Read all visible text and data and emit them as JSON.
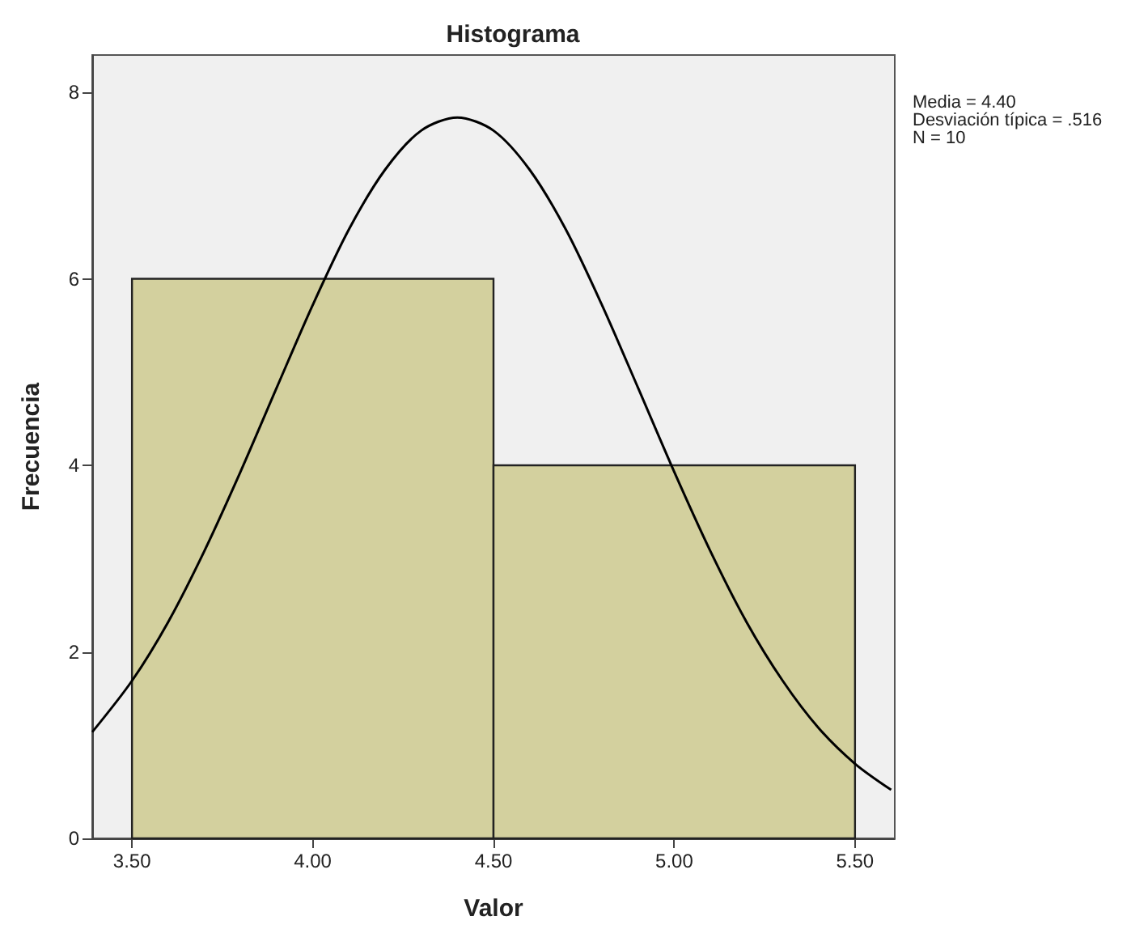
{
  "chart_data": {
    "type": "histogram",
    "title": "Histograma",
    "xlabel": "Valor",
    "ylabel": "Frecuencia",
    "bins": [
      3.5,
      4.5,
      5.5
    ],
    "values": [
      6,
      4
    ],
    "color": "#d3d09e",
    "series": [
      {
        "type": "line",
        "color": "#000000",
        "x": [
          3.39,
          3.5,
          3.6,
          3.7,
          3.8,
          3.9,
          4.0,
          4.1,
          4.2,
          4.3,
          4.4,
          4.5,
          4.6,
          4.7,
          4.8,
          4.9,
          5.0,
          5.1,
          5.2,
          5.3,
          5.4,
          5.5,
          5.6
        ],
        "values": [
          1.14,
          1.69,
          2.32,
          3.08,
          3.93,
          4.83,
          5.72,
          6.53,
          7.17,
          7.59,
          7.73,
          7.59,
          7.17,
          6.53,
          5.72,
          4.83,
          3.93,
          3.08,
          2.32,
          1.69,
          1.18,
          0.8,
          0.52
        ]
      }
    ],
    "xlim": [
      3.39,
      5.61
    ],
    "xticks": [
      {
        "value": 3.5,
        "label": "3.50"
      },
      {
        "value": 4.0,
        "label": "4.00"
      },
      {
        "value": 4.5,
        "label": "4.50"
      },
      {
        "value": 5.0,
        "label": "5.00"
      },
      {
        "value": 5.5,
        "label": "5.50"
      }
    ],
    "ylim": [
      0,
      8.4
    ],
    "yticks": [
      0,
      2,
      4,
      6,
      8
    ],
    "annotations": [
      "Media = 4.40",
      "Desviación típica = .516",
      "N = 10"
    ],
    "grid": false,
    "marker": "none",
    "line_style": "solid"
  }
}
